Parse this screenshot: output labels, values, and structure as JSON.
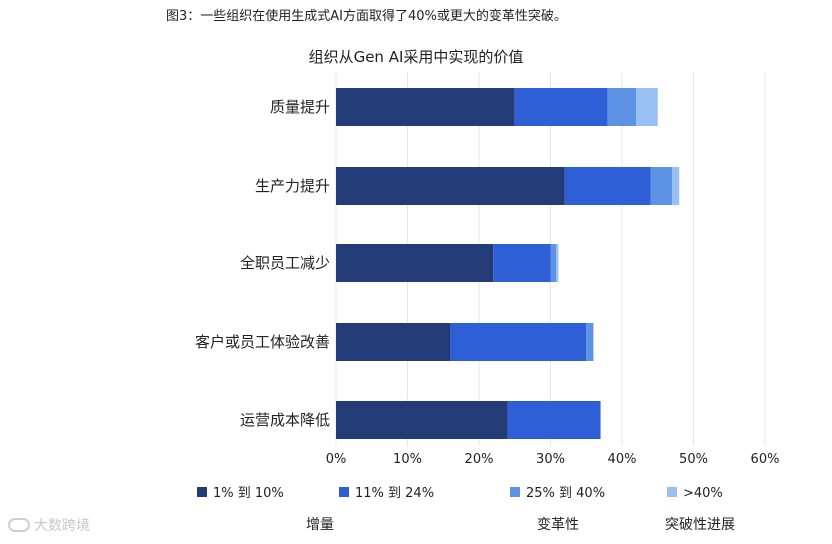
{
  "caption": "图3：一些组织在使用生成式AI方面取得了40%或更大的变革性突破。",
  "chart_data": {
    "type": "bar",
    "orientation": "horizontal",
    "stacked": true,
    "title": "组织从Gen AI采用中实现的价值",
    "categories": [
      "质量提升",
      "生产力提升",
      "全职员工减少",
      "客户或员工体验改善",
      "运营成本降低"
    ],
    "series": [
      {
        "name": "1% 到 10%",
        "color": "#233b77",
        "values": [
          25,
          32,
          22,
          16,
          24
        ]
      },
      {
        "name": "11% 到 24%",
        "color": "#2f5fd6",
        "values": [
          13,
          12,
          8,
          19,
          13
        ]
      },
      {
        "name": "25% 到 40%",
        "color": "#5d92e5",
        "values": [
          4,
          3,
          0.8,
          1,
          0
        ]
      },
      {
        "name": ">40%",
        "color": "#98c0f2",
        "values": [
          3,
          1,
          0.3,
          0,
          0
        ]
      }
    ],
    "xlim": [
      0,
      60
    ],
    "xticks": [
      "0%",
      "10%",
      "20%",
      "30%",
      "40%",
      "50%",
      "60%"
    ],
    "legend_position": "bottom",
    "grid": true
  },
  "bottom_labels": {
    "increment": "增量",
    "transformative": "变革性",
    "breakthrough": "突破性进展"
  },
  "watermark": "大数跨境"
}
